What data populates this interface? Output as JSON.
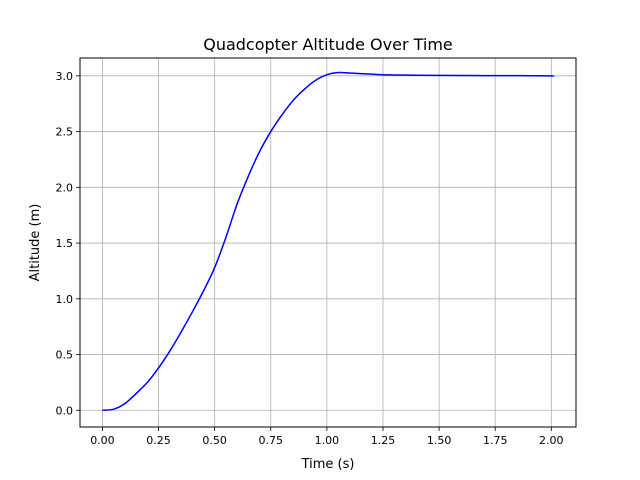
{
  "chart_data": {
    "type": "line",
    "title": "Quadcopter Altitude Over Time",
    "xlabel": "Time (s)",
    "ylabel": "Altitude (m)",
    "xlim": [
      -0.1,
      2.11
    ],
    "ylim": [
      -0.15,
      3.16
    ],
    "grid": true,
    "x_ticks": [
      0.0,
      0.25,
      0.5,
      0.75,
      1.0,
      1.25,
      1.5,
      1.75,
      2.0
    ],
    "x_tick_labels": [
      "0.00",
      "0.25",
      "0.50",
      "0.75",
      "1.00",
      "1.25",
      "1.50",
      "1.75",
      "2.00"
    ],
    "y_ticks": [
      0.0,
      0.5,
      1.0,
      1.5,
      2.0,
      2.5,
      3.0
    ],
    "y_tick_labels": [
      "0.0",
      "0.5",
      "1.0",
      "1.5",
      "2.0",
      "2.5",
      "3.0"
    ],
    "series": [
      {
        "color": "#0000ff",
        "x": [
          0.0,
          0.05,
          0.1,
          0.15,
          0.2,
          0.25,
          0.3,
          0.35,
          0.4,
          0.45,
          0.5,
          0.55,
          0.6,
          0.65,
          0.7,
          0.75,
          0.8,
          0.85,
          0.9,
          0.95,
          1.0,
          1.05,
          1.1,
          1.15,
          1.2,
          1.25,
          1.3,
          1.4,
          1.5,
          1.6,
          1.7,
          1.8,
          1.9,
          2.0,
          2.01
        ],
        "y": [
          0.0,
          0.01,
          0.06,
          0.15,
          0.25,
          0.38,
          0.53,
          0.7,
          0.88,
          1.07,
          1.28,
          1.55,
          1.85,
          2.1,
          2.32,
          2.5,
          2.65,
          2.78,
          2.88,
          2.96,
          3.01,
          3.03,
          3.025,
          3.02,
          3.015,
          3.01,
          3.008,
          3.005,
          3.004,
          3.003,
          3.002,
          3.002,
          3.001,
          3.0,
          2.995
        ]
      }
    ]
  }
}
